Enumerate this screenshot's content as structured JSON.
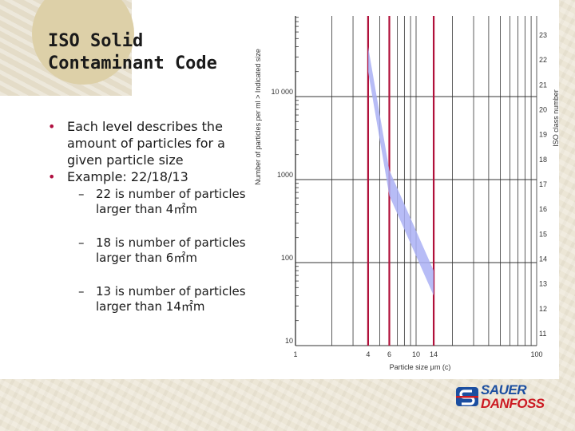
{
  "slide": {
    "title_lines": [
      "ISO Solid",
      "Contaminant Code"
    ],
    "bullets": [
      "Each level describes the amount of particles for a given particle size",
      "Example: 22/18/13"
    ],
    "sub_bullets": [
      "22 is number of particles larger than 4㎡m",
      "18 is number of particles larger than 6㎡m",
      "13 is number of particles larger than 14㎡m"
    ],
    "bullet_glyph": "•",
    "dash_glyph": "–"
  },
  "logo": {
    "line1": "SAUER",
    "line2": "DANFOSS",
    "icon": "sauer-danfoss-s-logo-icon"
  },
  "colors": {
    "title": "#1a1a1a",
    "bullet_dot": "#b01040",
    "marker_lines": "#b0103a",
    "band_fill": "#aab0f4",
    "grid": "#333333",
    "logo_blue": "#1b4ea0",
    "logo_red": "#cc1a22"
  },
  "chart_data": {
    "type": "line",
    "ylabel": "Number of particles per ml > Indicated size",
    "xlabel": "Particle size   μm (c)",
    "y2label": "ISO class number",
    "x_scale": "log",
    "y_scale": "log",
    "xlim": [
      1,
      100
    ],
    "ylim": [
      10,
      100000
    ],
    "x_ticks": [
      1,
      4,
      6,
      10,
      14,
      100
    ],
    "x_tick_labels": [
      "1",
      "4",
      "6",
      "10",
      "14",
      "100"
    ],
    "y_ticks": [
      10,
      100,
      1000,
      10000
    ],
    "y_tick_labels": [
      "10",
      "100",
      "1000",
      "10 000"
    ],
    "iso_classes": [
      23,
      22,
      21,
      20,
      19,
      18,
      17,
      16,
      15,
      14,
      13,
      12,
      11
    ],
    "marker_x": [
      4,
      6,
      14
    ],
    "series": [
      {
        "x": [
          4,
          6,
          14
        ],
        "y_upper": [
          40000,
          1300,
          80
        ],
        "y_lower": [
          20000,
          640,
          40
        ]
      }
    ],
    "grid": true
  }
}
